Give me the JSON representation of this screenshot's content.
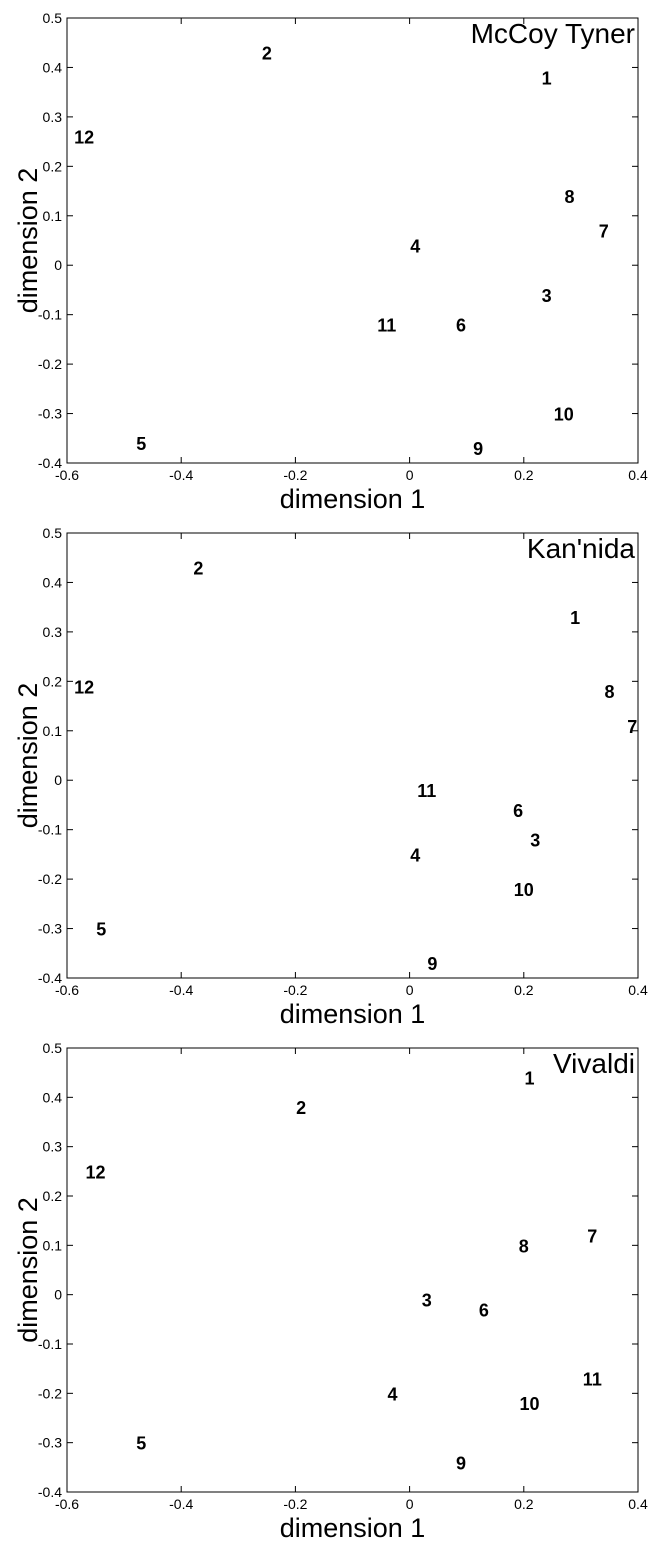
{
  "chart_data": [
    {
      "type": "scatter",
      "title": "McCoy Tyner",
      "xlabel": "dimension 1",
      "ylabel": "dimension 2",
      "xlim": [
        -0.6,
        0.4
      ],
      "ylim": [
        -0.4,
        0.5
      ],
      "xticks": [
        "-0.6",
        "-0.4",
        "-0.2",
        "0",
        "0.2",
        "0.4"
      ],
      "yticks": [
        "-0.4",
        "-0.3",
        "-0.2",
        "-0.1",
        "0",
        "0.1",
        "0.2",
        "0.3",
        "0.4",
        "0.5"
      ],
      "grid": false,
      "title_position": "top-right",
      "points": [
        {
          "label": "1",
          "x": 0.24,
          "y": 0.38
        },
        {
          "label": "2",
          "x": -0.25,
          "y": 0.43
        },
        {
          "label": "3",
          "x": 0.24,
          "y": -0.06
        },
        {
          "label": "4",
          "x": 0.01,
          "y": 0.04
        },
        {
          "label": "5",
          "x": -0.47,
          "y": -0.36
        },
        {
          "label": "6",
          "x": 0.09,
          "y": -0.12
        },
        {
          "label": "7",
          "x": 0.34,
          "y": 0.07
        },
        {
          "label": "8",
          "x": 0.28,
          "y": 0.14
        },
        {
          "label": "9",
          "x": 0.12,
          "y": -0.37
        },
        {
          "label": "10",
          "x": 0.27,
          "y": -0.3
        },
        {
          "label": "11",
          "x": -0.04,
          "y": -0.12
        },
        {
          "label": "12",
          "x": -0.57,
          "y": 0.26
        }
      ]
    },
    {
      "type": "scatter",
      "title": "Kan'nida",
      "xlabel": "dimension 1",
      "ylabel": "dimension 2",
      "xlim": [
        -0.6,
        0.4
      ],
      "ylim": [
        -0.4,
        0.5
      ],
      "xticks": [
        "-0.6",
        "-0.4",
        "-0.2",
        "0",
        "0.2",
        "0.4"
      ],
      "yticks": [
        "-0.4",
        "-0.3",
        "-0.2",
        "-0.1",
        "0",
        "0.1",
        "0.2",
        "0.3",
        "0.4",
        "0.5"
      ],
      "grid": false,
      "title_position": "top-right",
      "points": [
        {
          "label": "1",
          "x": 0.29,
          "y": 0.33
        },
        {
          "label": "2",
          "x": -0.37,
          "y": 0.43
        },
        {
          "label": "3",
          "x": 0.22,
          "y": -0.12
        },
        {
          "label": "4",
          "x": 0.01,
          "y": -0.15
        },
        {
          "label": "5",
          "x": -0.54,
          "y": -0.3
        },
        {
          "label": "6",
          "x": 0.19,
          "y": -0.06
        },
        {
          "label": "7",
          "x": 0.39,
          "y": 0.11
        },
        {
          "label": "8",
          "x": 0.35,
          "y": 0.18
        },
        {
          "label": "9",
          "x": 0.04,
          "y": -0.37
        },
        {
          "label": "10",
          "x": 0.2,
          "y": -0.22
        },
        {
          "label": "11",
          "x": 0.03,
          "y": -0.02
        },
        {
          "label": "12",
          "x": -0.57,
          "y": 0.19
        }
      ]
    },
    {
      "type": "scatter",
      "title": "Vivaldi",
      "xlabel": "dimension 1",
      "ylabel": "dimension 2",
      "xlim": [
        -0.6,
        0.4
      ],
      "ylim": [
        -0.4,
        0.5
      ],
      "xticks": [
        "-0.6",
        "-0.4",
        "-0.2",
        "0",
        "0.2",
        "0.4"
      ],
      "yticks": [
        "-0.4",
        "-0.3",
        "-0.2",
        "-0.1",
        "0",
        "0.1",
        "0.2",
        "0.3",
        "0.4",
        "0.5"
      ],
      "grid": false,
      "title_position": "top-right",
      "points": [
        {
          "label": "1",
          "x": 0.21,
          "y": 0.44
        },
        {
          "label": "2",
          "x": -0.19,
          "y": 0.38
        },
        {
          "label": "3",
          "x": 0.03,
          "y": -0.01
        },
        {
          "label": "4",
          "x": -0.03,
          "y": -0.2
        },
        {
          "label": "5",
          "x": -0.47,
          "y": -0.3
        },
        {
          "label": "6",
          "x": 0.13,
          "y": -0.03
        },
        {
          "label": "7",
          "x": 0.32,
          "y": 0.12
        },
        {
          "label": "8",
          "x": 0.2,
          "y": 0.1
        },
        {
          "label": "9",
          "x": 0.09,
          "y": -0.34
        },
        {
          "label": "10",
          "x": 0.21,
          "y": -0.22
        },
        {
          "label": "11",
          "x": 0.32,
          "y": -0.17
        },
        {
          "label": "12",
          "x": -0.55,
          "y": 0.25
        }
      ]
    }
  ]
}
